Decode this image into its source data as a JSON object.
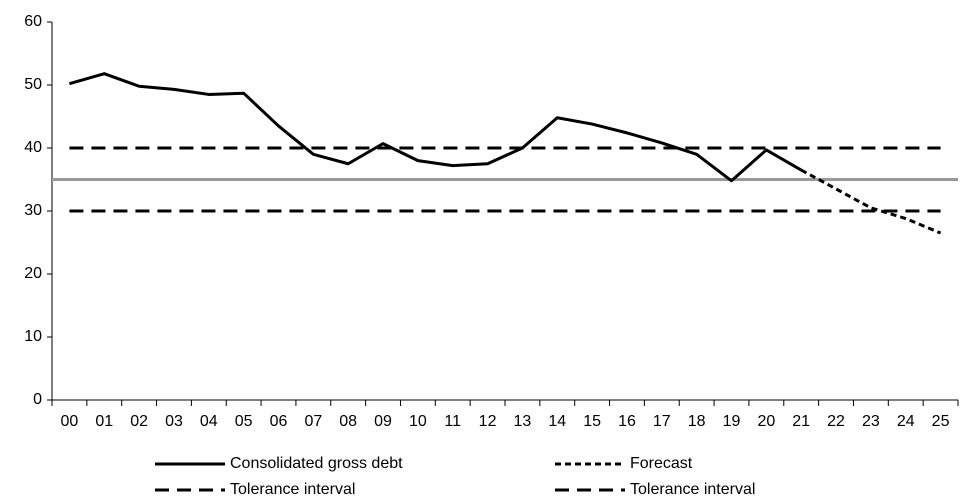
{
  "chart_data": {
    "type": "line",
    "categories": [
      "00",
      "01",
      "02",
      "03",
      "04",
      "05",
      "06",
      "07",
      "08",
      "09",
      "10",
      "11",
      "12",
      "13",
      "14",
      "15",
      "16",
      "17",
      "18",
      "19",
      "20",
      "21",
      "22",
      "23",
      "24",
      "25"
    ],
    "ylim": [
      0,
      60
    ],
    "yticks": [
      0,
      10,
      20,
      30,
      40,
      50,
      60
    ],
    "grid": false,
    "reference_line": {
      "value": 35,
      "color": "#999999"
    },
    "series": [
      {
        "name": "Consolidated gross debt",
        "color": "#000000",
        "style": "solid",
        "values": [
          50.2,
          51.8,
          49.8,
          49.3,
          48.5,
          48.7,
          43.5,
          39,
          37.5,
          40.7,
          38,
          37.2,
          37.5,
          40,
          44.8,
          43.8,
          42.4,
          40.8,
          39,
          34.8,
          39.7,
          36.5,
          null,
          null,
          null,
          null
        ]
      },
      {
        "name": "Forecast",
        "color": "#000000",
        "style": "short-dash",
        "values": [
          null,
          null,
          null,
          null,
          null,
          null,
          null,
          null,
          null,
          null,
          null,
          null,
          null,
          null,
          null,
          null,
          null,
          null,
          null,
          null,
          null,
          36.5,
          33.5,
          30.5,
          28.8,
          26.5
        ]
      },
      {
        "name": "Tolerance interval",
        "color": "#000000",
        "style": "long-dash",
        "values": [
          40,
          40,
          40,
          40,
          40,
          40,
          40,
          40,
          40,
          40,
          40,
          40,
          40,
          40,
          40,
          40,
          40,
          40,
          40,
          40,
          40,
          40,
          40,
          40,
          40,
          40
        ]
      },
      {
        "name": "Tolerance interval",
        "color": "#000000",
        "style": "long-dash",
        "values": [
          30,
          30,
          30,
          30,
          30,
          30,
          30,
          30,
          30,
          30,
          30,
          30,
          30,
          30,
          30,
          30,
          30,
          30,
          30,
          30,
          30,
          30,
          30,
          30,
          30,
          30
        ]
      }
    ]
  }
}
